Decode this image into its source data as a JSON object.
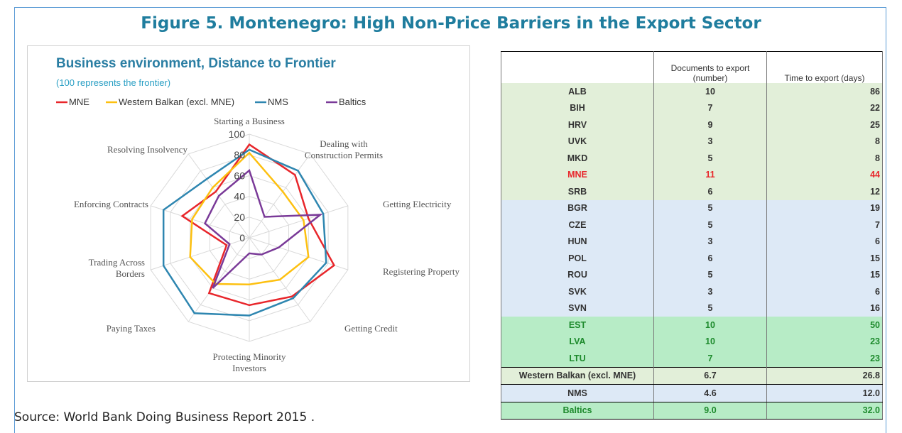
{
  "title": "Figure 5. Montenegro: High Non-Price Barriers in the Export Sector",
  "source": "Source: World Bank Doing Business Report 2015 .",
  "chart_data": {
    "type": "radar",
    "title": "Business environment, Distance to Frontier",
    "subtitle": "(100 represents the frontier)",
    "categories": [
      "Starting a Business",
      "Dealing with Construction Permits",
      "Getting Electricity",
      "Registering Property",
      "Getting Credit",
      "Protecting Minority Investors",
      "Paying Taxes",
      "Trading Across Borders",
      "Enforcing Contracts",
      "Resolving Insolvency"
    ],
    "rlim": [
      0,
      100
    ],
    "rticks": [
      0,
      20,
      40,
      60,
      80,
      100
    ],
    "grid": true,
    "legend": "top",
    "series": [
      {
        "name": "MNE",
        "color": "#e8262b",
        "values": [
          90,
          75,
          60,
          86,
          70,
          65,
          66,
          23,
          68,
          55
        ]
      },
      {
        "name": "Western Balkan (excl. MNE)",
        "color": "#fdc010",
        "values": [
          82,
          55,
          55,
          60,
          50,
          45,
          55,
          60,
          58,
          60
        ]
      },
      {
        "name": "NMS",
        "color": "#2e86b0",
        "values": [
          85,
          80,
          75,
          78,
          72,
          75,
          90,
          87,
          87,
          70
        ]
      },
      {
        "name": "Baltics",
        "color": "#7a3a98",
        "values": [
          65,
          25,
          72,
          30,
          20,
          15,
          60,
          20,
          45,
          50
        ]
      }
    ]
  },
  "table": {
    "header": [
      "",
      "Documents to export (number)",
      "Time to export (days)"
    ],
    "rows": [
      [
        "ALB",
        "10",
        "86"
      ],
      [
        "BIH",
        "7",
        "22"
      ],
      [
        "HRV",
        "9",
        "25"
      ],
      [
        "UVK",
        "3",
        "8"
      ],
      [
        "MKD",
        "5",
        "8"
      ],
      [
        "MNE",
        "11",
        "44"
      ],
      [
        "SRB",
        "6",
        "12"
      ],
      [
        "BGR",
        "5",
        "19"
      ],
      [
        "CZE",
        "5",
        "7"
      ],
      [
        "HUN",
        "3",
        "6"
      ],
      [
        "POL",
        "6",
        "15"
      ],
      [
        "ROU",
        "5",
        "15"
      ],
      [
        "SVK",
        "3",
        "6"
      ],
      [
        "SVN",
        "5",
        "16"
      ],
      [
        "EST",
        "10",
        "50"
      ],
      [
        "LVA",
        "10",
        "23"
      ],
      [
        "LTU",
        "7",
        "23"
      ],
      [
        "Western Balkan (excl. MNE)",
        "6.7",
        "26.8"
      ],
      [
        "NMS",
        "4.6",
        "12.0"
      ],
      [
        "Baltics",
        "9.0",
        "32.0"
      ]
    ]
  }
}
